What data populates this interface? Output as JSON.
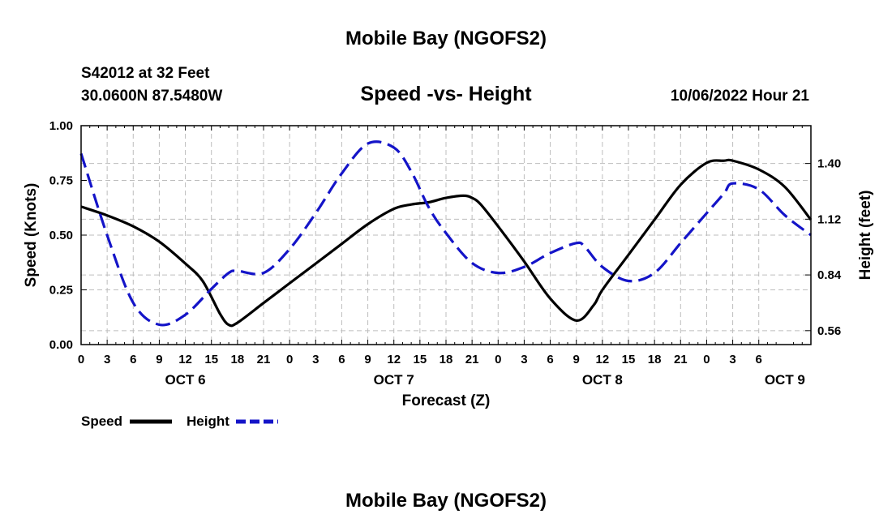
{
  "page_title": "Mobile Bay (NGOFS2)",
  "footer_title": "Mobile Bay (NGOFS2)",
  "station": {
    "name": "S42012 at 32 Feet",
    "coords": "30.0600N  87.5480W"
  },
  "issued": "10/06/2022 Hour 21",
  "chart_data": {
    "type": "line",
    "title": "Speed -vs- Height",
    "xlabel": "Forecast (Z)",
    "ylabel": "Speed (Knots)",
    "y2label": "Height (feet)",
    "x_range_hours": [
      0,
      84
    ],
    "ylim": [
      0,
      1.0
    ],
    "y2lim": [
      0.49,
      1.59
    ],
    "y_ticks": [
      "0.00",
      "0.25",
      "0.50",
      "0.75",
      "1.00"
    ],
    "y2_ticks": [
      "0.56",
      "0.84",
      "1.12",
      "1.40"
    ],
    "x_tick_labels": [
      "0",
      "3",
      "6",
      "9",
      "12",
      "15",
      "18",
      "21",
      "0",
      "3",
      "6",
      "9",
      "12",
      "15",
      "18",
      "21",
      "0",
      "3",
      "6",
      "9",
      "12",
      "15",
      "18",
      "21",
      "0",
      "3",
      "6"
    ],
    "day_labels": [
      {
        "label": "OCT 6",
        "hour": 12
      },
      {
        "label": "OCT 7",
        "hour": 36
      },
      {
        "label": "OCT 8",
        "hour": 60
      },
      {
        "label": "OCT 9",
        "hour": 81
      }
    ],
    "grid": true,
    "legend_position": "bottom-left",
    "series": [
      {
        "name": "Speed",
        "axis": "left",
        "color": "#000000",
        "style": "solid",
        "x": [
          0,
          3,
          6,
          9,
          12,
          14,
          16,
          17,
          18,
          21,
          24,
          27,
          30,
          33,
          36,
          38,
          40,
          42,
          44,
          45,
          46,
          48,
          51,
          54,
          57,
          59,
          60,
          63,
          66,
          69,
          72,
          74,
          75,
          78,
          81,
          84
        ],
        "values": [
          0.63,
          0.59,
          0.54,
          0.47,
          0.37,
          0.29,
          0.14,
          0.09,
          0.1,
          0.19,
          0.28,
          0.37,
          0.46,
          0.55,
          0.62,
          0.64,
          0.65,
          0.67,
          0.68,
          0.67,
          0.64,
          0.54,
          0.38,
          0.21,
          0.11,
          0.18,
          0.25,
          0.41,
          0.57,
          0.73,
          0.83,
          0.84,
          0.84,
          0.8,
          0.72,
          0.57
        ]
      },
      {
        "name": "Height",
        "axis": "right",
        "color": "#1414c8",
        "style": "dashed",
        "x": [
          0,
          3,
          6,
          9,
          12,
          15,
          17,
          18,
          21,
          24,
          27,
          30,
          33,
          36,
          38,
          40,
          42,
          45,
          48,
          51,
          54,
          57,
          58,
          60,
          63,
          66,
          69,
          72,
          74,
          75,
          78,
          81,
          84
        ],
        "values": [
          1.45,
          1.04,
          0.7,
          0.59,
          0.64,
          0.77,
          0.85,
          0.86,
          0.85,
          0.97,
          1.15,
          1.35,
          1.5,
          1.48,
          1.36,
          1.18,
          1.05,
          0.9,
          0.85,
          0.88,
          0.95,
          1.0,
          0.98,
          0.88,
          0.81,
          0.85,
          1.0,
          1.15,
          1.25,
          1.3,
          1.27,
          1.14,
          1.04
        ]
      }
    ]
  }
}
